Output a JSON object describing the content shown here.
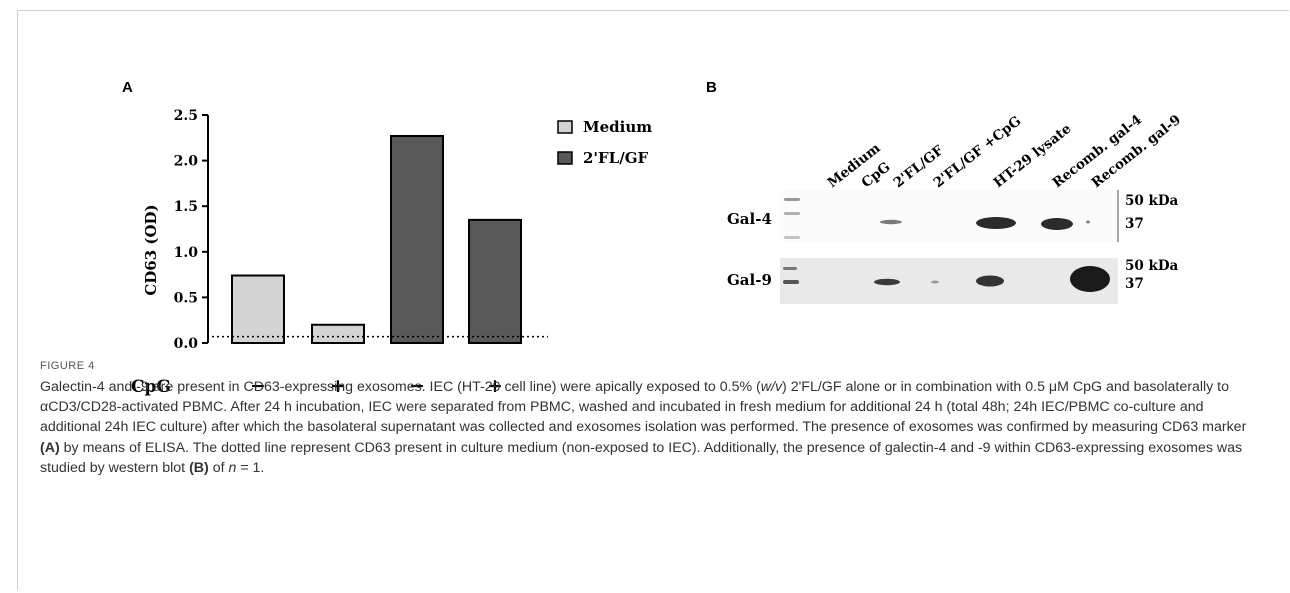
{
  "panel_a": {
    "label": "A",
    "ylabel": "CD63 (OD)",
    "cpg_label": "CpG",
    "cpg_signs": [
      "−",
      "+",
      "−",
      "+"
    ]
  },
  "panel_b": {
    "label": "B",
    "lanes": [
      "Medium",
      "CpG",
      "2'FL/GF",
      "2'FL/GF +CpG",
      "HT-29 lysate",
      "Recomb. gal-4",
      "Recomb. gal-9"
    ],
    "rows": [
      {
        "name": "Gal-4",
        "marker_top": "50 kDa",
        "marker_bottom": "37"
      },
      {
        "name": "Gal-9",
        "marker_top": "50 kDa",
        "marker_bottom": "37"
      }
    ]
  },
  "chart_data": {
    "type": "bar",
    "categories": [
      "Medium −CpG",
      "Medium +CpG",
      "2'FL/GF −CpG",
      "2'FL/GF +CpG"
    ],
    "series": [
      {
        "name": "Medium",
        "values": [
          0.74,
          0.2,
          null,
          null
        ],
        "color": "#d3d3d3"
      },
      {
        "name": "2'FL/GF",
        "values": [
          null,
          null,
          2.27,
          1.35
        ],
        "color": "#595959"
      }
    ],
    "ylabel": "CD63 (OD)",
    "ylim": [
      0,
      2.5
    ],
    "yticks": [
      "0.0",
      "0.5",
      "1.0",
      "1.5",
      "2.0",
      "2.5"
    ],
    "reference_line": 0.07,
    "legend": [
      "Medium",
      "2'FL/GF"
    ],
    "legend_position": "top-right"
  },
  "caption": {
    "label": "FIGURE 4",
    "text_1": "Galectin-4 and -9 are present in CD63-expressing exosomes. IEC (HT-29 cell line) were apically exposed to 0.5% (",
    "w_v": "w/v",
    "text_2": ") 2'FL/GF alone or in combination with 0.5 μM CpG and basolaterally to αCD3/CD28-activated PBMC. After 24 h incubation, IEC were separated from PBMC, washed and incubated in fresh medium for additional 24 h (total 48h; 24h IEC/PBMC co-culture and additional 24h IEC culture) after which the basolateral supernatant was collected and exosomes isolation was performed. The presence of exosomes was confirmed by measuring CD63 marker ",
    "ref_a": "(A)",
    "text_3": " by means of ELISA. The dotted line represent CD63 present in culture medium (non-exposed to IEC). Additionally, the presence of galectin-4 and -9 within CD63-expressing exosomes was studied by western blot ",
    "ref_b": "(B)",
    "text_4": " of ",
    "n": "n",
    "text_5": " = 1."
  }
}
